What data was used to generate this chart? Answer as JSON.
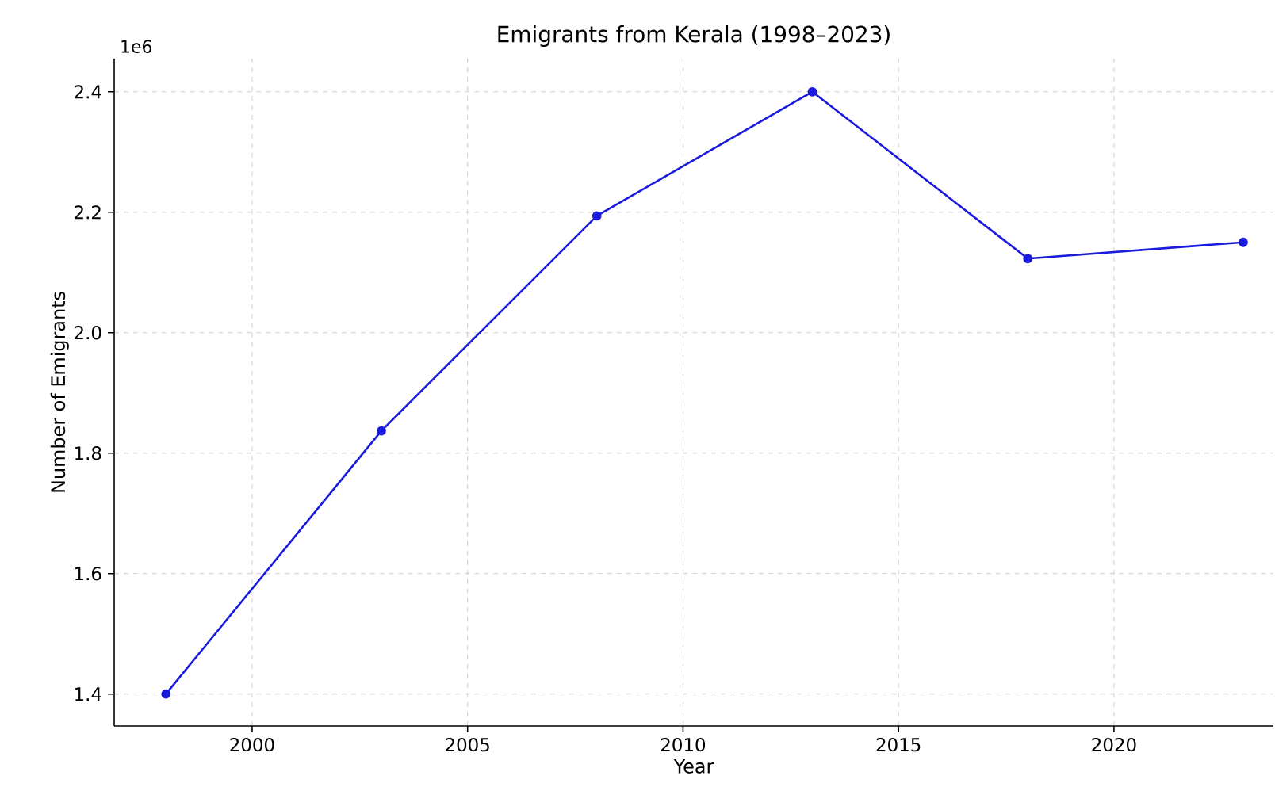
{
  "chart_data": {
    "type": "line",
    "title": "Emigrants from Kerala (1998–2023)",
    "xlabel": "Year",
    "ylabel": "Number of Emigrants",
    "annotations": [
      "1e6"
    ],
    "x": [
      1998,
      2003,
      2008,
      2013,
      2018,
      2023
    ],
    "series": [
      {
        "color": "#1a1adc",
        "values": [
          1.4,
          1.837,
          2.194,
          2.4,
          2.123,
          2.15
        ]
      }
    ],
    "xlim": [
      1996.8,
      2023.7
    ],
    "xticks": [
      2000,
      2005,
      2010,
      2015,
      2020
    ],
    "ylim": [
      1.347,
      2.455
    ],
    "yticks": [
      1.4,
      1.6,
      1.8,
      {
        "value": 2.0,
        "label": "2.0"
      },
      2.2,
      2.4
    ],
    "grid": true,
    "marker": "circle",
    "line_style": "solid"
  }
}
